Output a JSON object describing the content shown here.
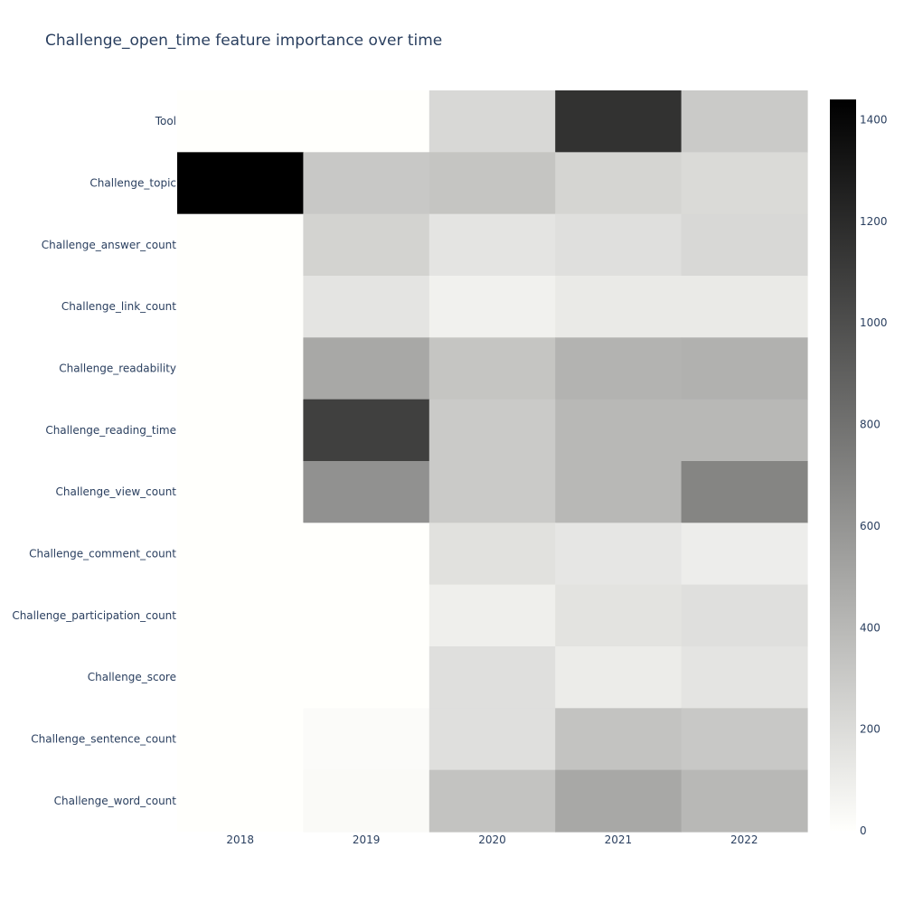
{
  "chart_data": {
    "type": "heatmap",
    "title": "Challenge_open_time feature importance over time",
    "x": [
      "2018",
      "2019",
      "2020",
      "2021",
      "2022"
    ],
    "y": [
      "Tool",
      "Challenge_topic",
      "Challenge_answer_count",
      "Challenge_link_count",
      "Challenge_readability",
      "Challenge_reading_time",
      "Challenge_view_count",
      "Challenge_comment_count",
      "Challenge_participation_count",
      "Challenge_score",
      "Challenge_sentence_count",
      "Challenge_word_count"
    ],
    "z": [
      [
        0,
        0,
        220,
        1160,
        300
      ],
      [
        1440,
        310,
        330,
        240,
        210
      ],
      [
        0,
        250,
        150,
        180,
        220
      ],
      [
        0,
        150,
        80,
        120,
        120
      ],
      [
        0,
        490,
        330,
        430,
        440
      ],
      [
        0,
        1080,
        300,
        400,
        400
      ],
      [
        0,
        620,
        300,
        400,
        690
      ],
      [
        0,
        0,
        170,
        140,
        100
      ],
      [
        0,
        0,
        90,
        160,
        180
      ],
      [
        0,
        0,
        180,
        110,
        150
      ],
      [
        0,
        20,
        180,
        340,
        310
      ],
      [
        0,
        30,
        340,
        490,
        400
      ]
    ],
    "zmin": 0,
    "zmax": 1440,
    "colorscale": [
      "#fffffc",
      "#000000"
    ],
    "colorbar": {
      "ticks": [
        0,
        200,
        400,
        600,
        800,
        1000,
        1200,
        1400
      ],
      "tick_labels": [
        "0",
        "200",
        "400",
        "600",
        "800",
        "1000",
        "1200",
        "1400"
      ]
    }
  }
}
